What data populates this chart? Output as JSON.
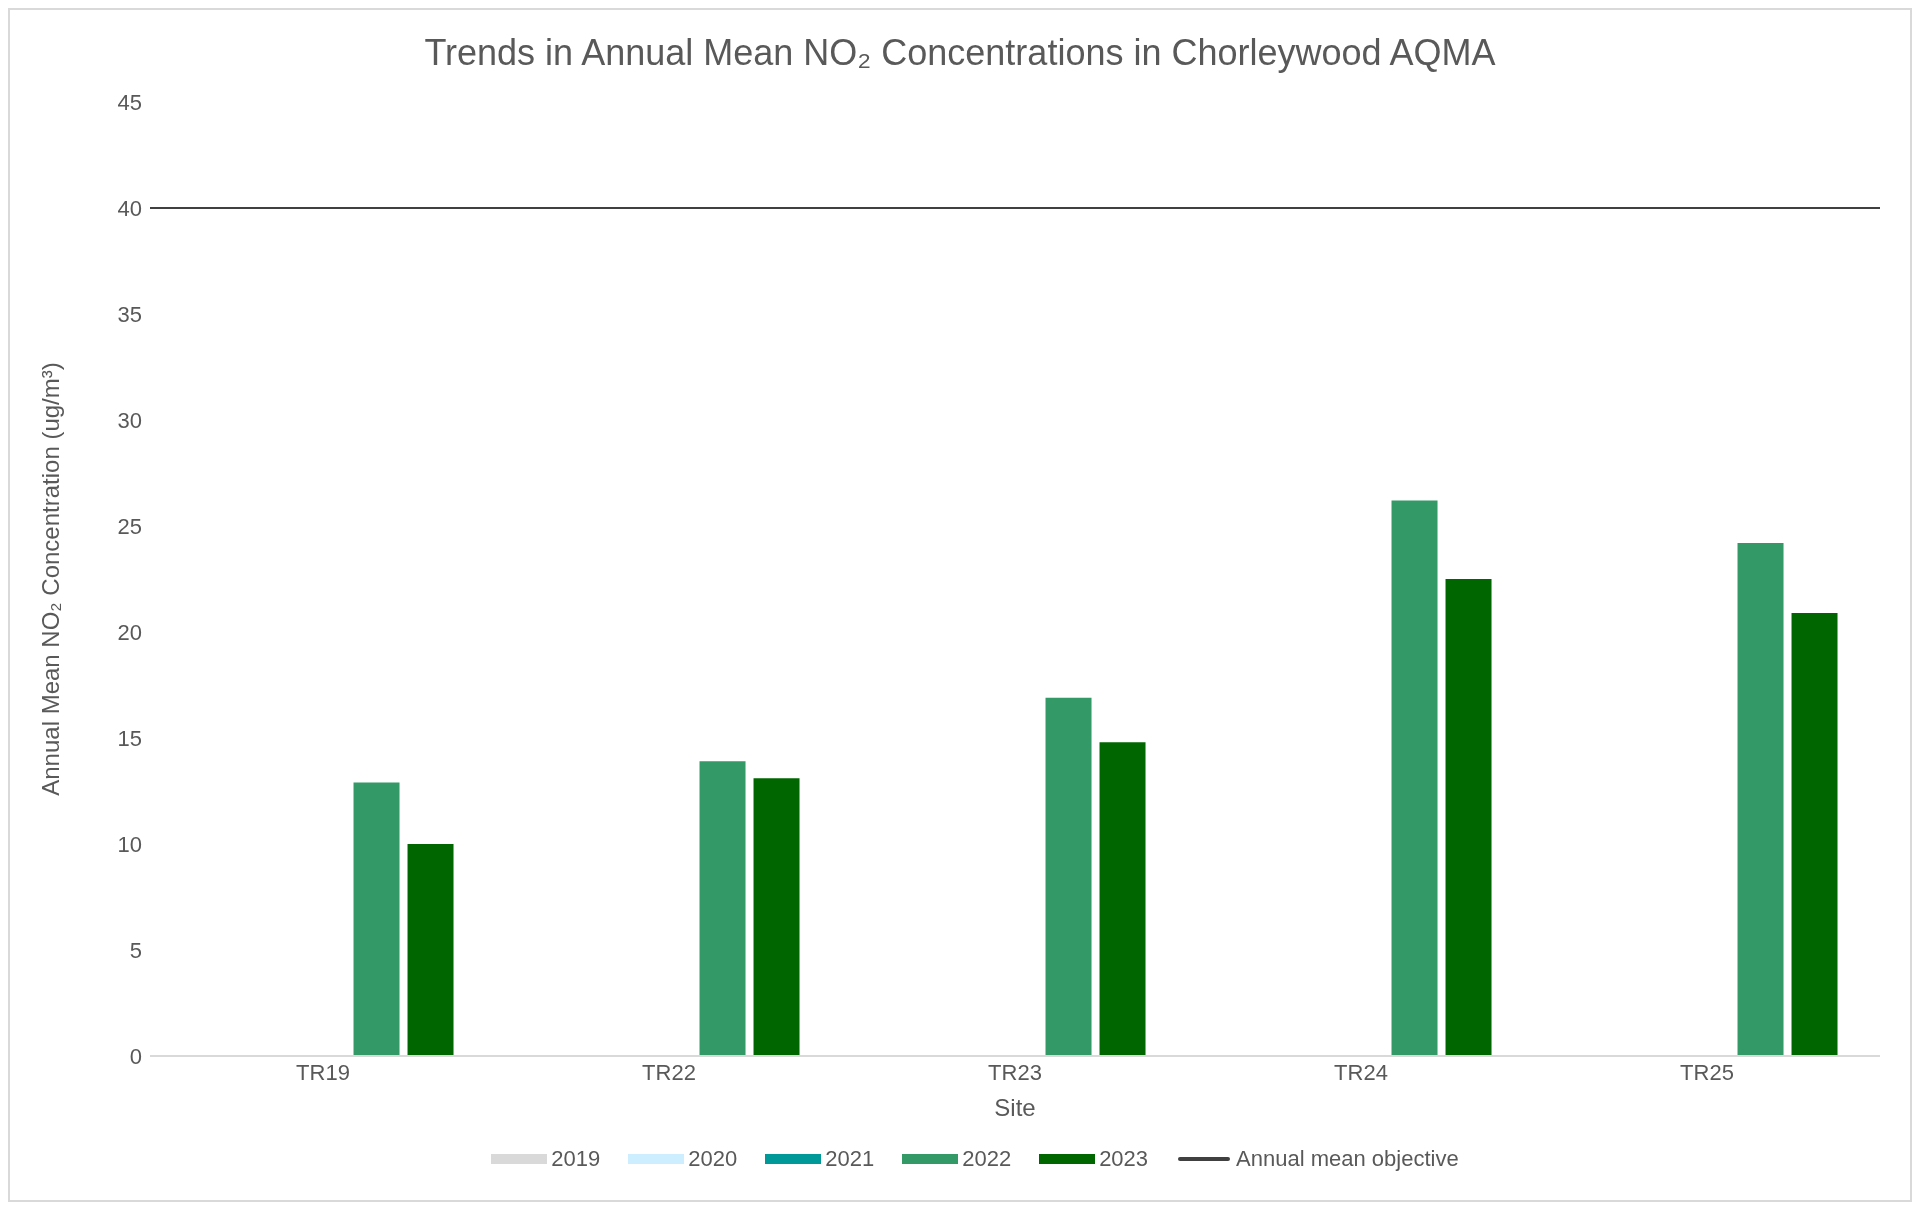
{
  "chart_data": {
    "type": "bar",
    "title": "Trends in Annual Mean NO₂ Concentrations in Chorleywood AQMA",
    "xlabel": "Site",
    "ylabel": "Annual Mean NO₂ Concentration (ug/m³)",
    "categories": [
      "TR19",
      "TR22",
      "TR23",
      "TR24",
      "TR25"
    ],
    "series": [
      {
        "name": "2019",
        "color": "#d9d9d9",
        "values": [
          null,
          null,
          null,
          null,
          null
        ]
      },
      {
        "name": "2020",
        "color": "#cceeff",
        "values": [
          null,
          null,
          null,
          null,
          null
        ]
      },
      {
        "name": "2021",
        "color": "#009999",
        "values": [
          null,
          null,
          null,
          null,
          null
        ]
      },
      {
        "name": "2022",
        "color": "#339966",
        "values": [
          12.9,
          13.9,
          16.9,
          26.2,
          24.2
        ]
      },
      {
        "name": "2023",
        "color": "#006600",
        "values": [
          10.0,
          13.1,
          14.8,
          22.5,
          20.9
        ]
      }
    ],
    "ref_lines": [
      {
        "axis": "y",
        "value": 40,
        "label": "Annual mean objective",
        "color": "#404040"
      }
    ],
    "ylim": [
      0,
      45
    ],
    "yticks": [
      0,
      5,
      10,
      15,
      20,
      25,
      30,
      35,
      40,
      45
    ],
    "grid": false,
    "legend": "bottom"
  }
}
